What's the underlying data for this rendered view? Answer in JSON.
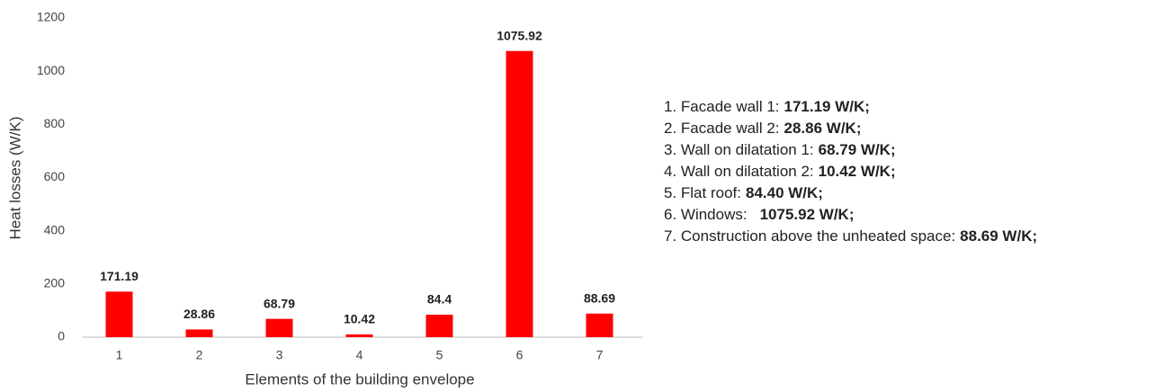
{
  "chart_data": {
    "type": "bar",
    "x_label": "Elements of the building envelope",
    "y_label": "Heat losses (W/K)",
    "categories": [
      "1",
      "2",
      "3",
      "4",
      "5",
      "6",
      "7"
    ],
    "values": [
      171.19,
      28.86,
      68.79,
      10.42,
      84.4,
      1075.92,
      88.69
    ],
    "color": "#ff0000",
    "ylim": [
      0,
      1200
    ],
    "yticks": [
      0,
      200,
      400,
      600,
      800,
      1000,
      1200
    ],
    "grid": false,
    "notes": [
      {
        "text": "1. Facade wall 1:",
        "value": "171.19 W/K;"
      },
      {
        "text": "2. Facade wall 2:",
        "value": "28.86 W/K;"
      },
      {
        "text": "3. Wall on dilatation 1:",
        "value": "68.79 W/K;"
      },
      {
        "text": "4. Wall on dilatation 2:",
        "value": "10.42 W/K;"
      },
      {
        "text": "5. Flat roof:",
        "value": "84.40 W/K;"
      },
      {
        "text": "6. Windows:",
        "value": "1075.92 W/K;"
      },
      {
        "text": "7. Construction above the unheated space:",
        "value": "88.69 W/K;"
      }
    ]
  }
}
